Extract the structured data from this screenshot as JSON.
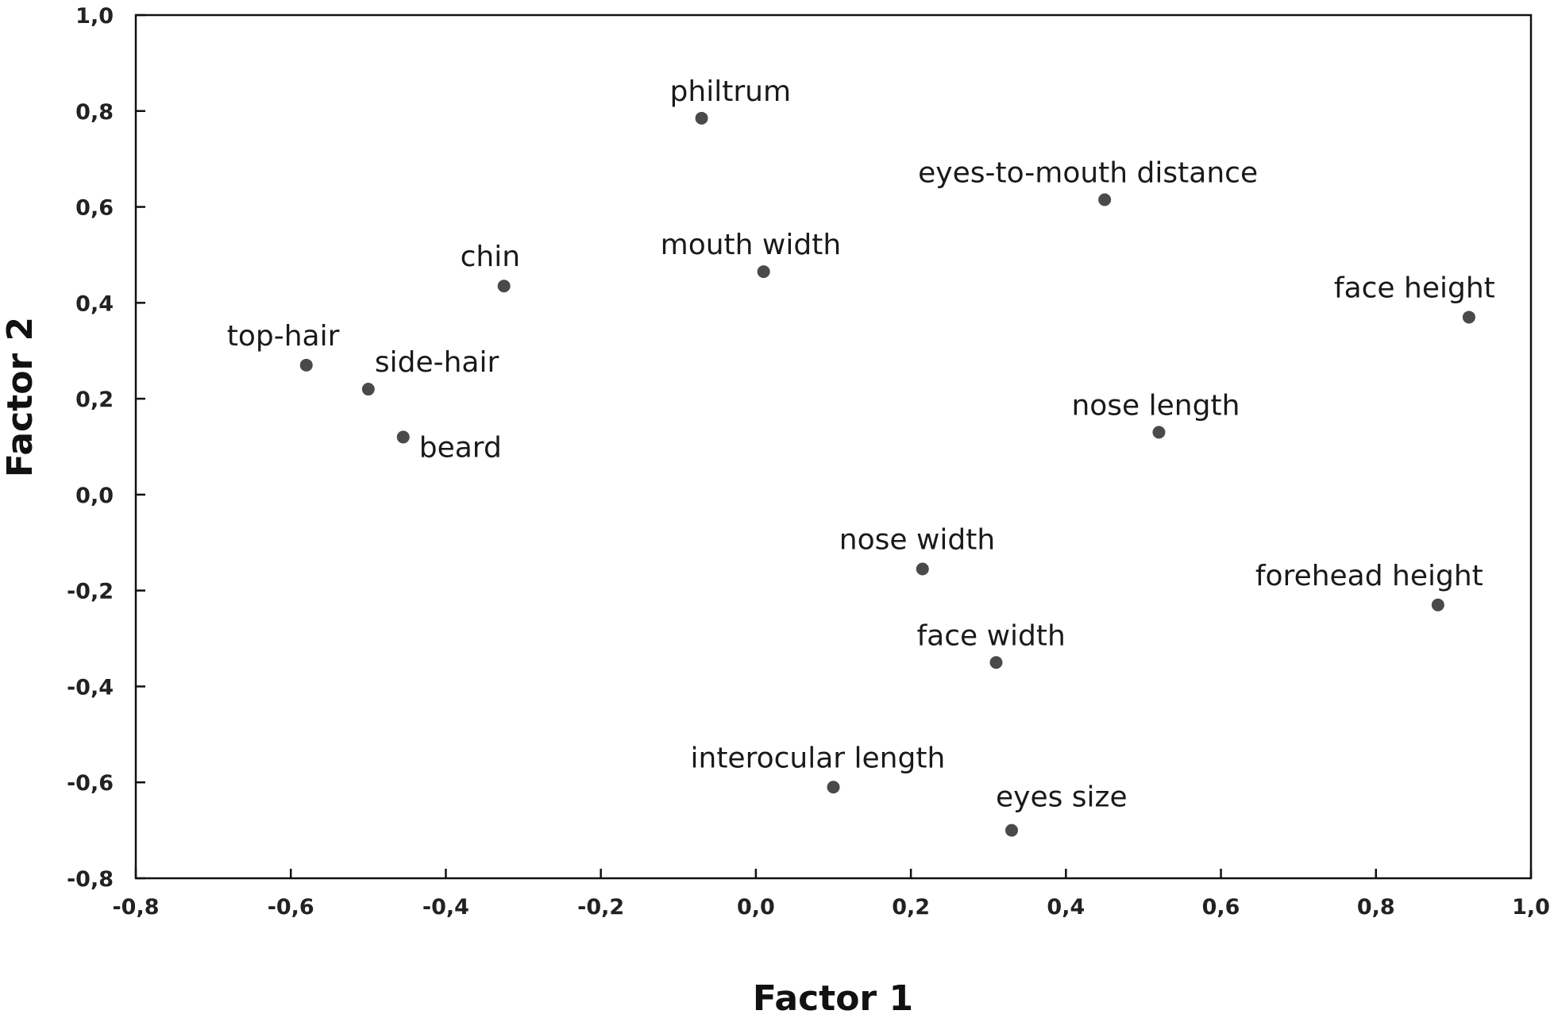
{
  "chart_data": {
    "type": "scatter",
    "xlabel": "Factor 1",
    "ylabel": "Factor 2",
    "xlim": [
      -0.8,
      1.0
    ],
    "ylim": [
      -0.8,
      1.0
    ],
    "x_ticks": [
      "-0,8",
      "-0,6",
      "-0,4",
      "-0,2",
      "0,0",
      "0,2",
      "0,4",
      "0,6",
      "0,8",
      "1,0"
    ],
    "y_ticks": [
      "-0,8",
      "-0,6",
      "-0,4",
      "-0,2",
      "0,0",
      "0,2",
      "0,4",
      "0,6",
      "0,8",
      "1,0"
    ],
    "grid": false,
    "legend": "none",
    "marker_color": "#4a4a4a",
    "points": [
      {
        "label": "philtrum",
        "x": -0.07,
        "y": 0.785
      },
      {
        "label": "eyes-to-mouth distance",
        "x": 0.45,
        "y": 0.615
      },
      {
        "label": "chin",
        "x": -0.325,
        "y": 0.435
      },
      {
        "label": "mouth width",
        "x": 0.01,
        "y": 0.465
      },
      {
        "label": "face height",
        "x": 0.92,
        "y": 0.37
      },
      {
        "label": "top-hair",
        "x": -0.58,
        "y": 0.27
      },
      {
        "label": "side-hair",
        "x": -0.5,
        "y": 0.22
      },
      {
        "label": "beard",
        "x": -0.455,
        "y": 0.12
      },
      {
        "label": "nose length",
        "x": 0.52,
        "y": 0.13
      },
      {
        "label": "nose width",
        "x": 0.215,
        "y": -0.155
      },
      {
        "label": "forehead height",
        "x": 0.88,
        "y": -0.23
      },
      {
        "label": "face width",
        "x": 0.31,
        "y": -0.35
      },
      {
        "label": "interocular length",
        "x": 0.1,
        "y": -0.61
      },
      {
        "label": "eyes size",
        "x": 0.33,
        "y": -0.7
      }
    ]
  }
}
